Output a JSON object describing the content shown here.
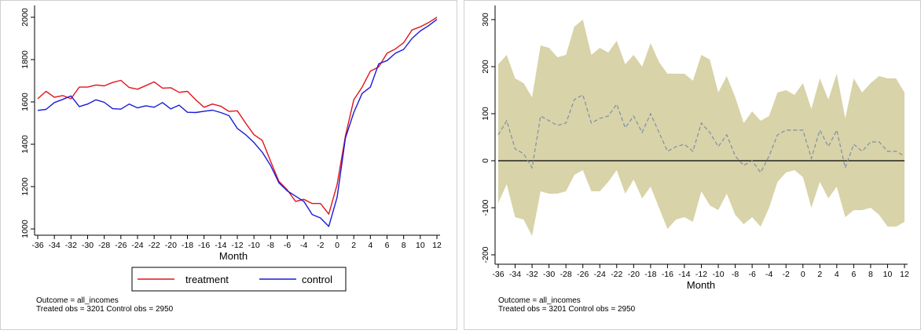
{
  "chart_data": [
    {
      "type": "line",
      "xlabel": "Month",
      "ylabel": "",
      "xlim": [
        -36,
        12
      ],
      "ylim": [
        1000,
        2000
      ],
      "x_ticks": [
        -36,
        -34,
        -32,
        -30,
        -28,
        -26,
        -24,
        -22,
        -20,
        -18,
        -16,
        -14,
        -12,
        -10,
        -8,
        -6,
        -4,
        -2,
        0,
        2,
        4,
        6,
        8,
        10,
        12
      ],
      "y_ticks": [
        1000,
        1200,
        1400,
        1600,
        1800,
        2000
      ],
      "grid": false,
      "legend_position": "bottom",
      "colors": {
        "treatment": "#e0141b",
        "control": "#1a1ad8"
      },
      "x": [
        -36,
        -35,
        -34,
        -33,
        -32,
        -31,
        -30,
        -29,
        -28,
        -27,
        -26,
        -25,
        -24,
        -23,
        -22,
        -21,
        -20,
        -19,
        -18,
        -17,
        -16,
        -15,
        -14,
        -13,
        -12,
        -11,
        -10,
        -9,
        -8,
        -7,
        -6,
        -5,
        -4,
        -3,
        -2,
        -1,
        0,
        1,
        2,
        3,
        4,
        5,
        6,
        7,
        8,
        9,
        10,
        11,
        12
      ],
      "series": [
        {
          "name": "treatment",
          "values": [
            1615,
            1650,
            1622,
            1630,
            1615,
            1670,
            1670,
            1680,
            1676,
            1692,
            1702,
            1668,
            1660,
            1677,
            1695,
            1665,
            1667,
            1645,
            1650,
            1610,
            1575,
            1590,
            1580,
            1555,
            1558,
            1500,
            1445,
            1418,
            1320,
            1225,
            1185,
            1130,
            1140,
            1120,
            1120,
            1070,
            1210,
            1440,
            1610,
            1670,
            1745,
            1765,
            1830,
            1850,
            1880,
            1940,
            1955,
            1975,
            2000
          ]
        },
        {
          "name": "control",
          "values": [
            1560,
            1565,
            1597,
            1612,
            1628,
            1578,
            1590,
            1610,
            1598,
            1568,
            1566,
            1590,
            1572,
            1582,
            1575,
            1597,
            1567,
            1585,
            1551,
            1550,
            1556,
            1561,
            1550,
            1535,
            1475,
            1445,
            1408,
            1362,
            1300,
            1218,
            1180,
            1155,
            1130,
            1068,
            1052,
            1012,
            1150,
            1430,
            1550,
            1640,
            1670,
            1780,
            1795,
            1830,
            1848,
            1900,
            1935,
            1960,
            1990
          ]
        }
      ],
      "annotations": [
        "Outcome = all_incomes",
        "Treated obs = 3201 Control obs = 2950"
      ]
    },
    {
      "type": "area",
      "xlabel": "Month",
      "ylabel": "",
      "xlim": [
        -36,
        12
      ],
      "ylim": [
        -200,
        300
      ],
      "x_ticks": [
        -36,
        -34,
        -32,
        -30,
        -28,
        -26,
        -24,
        -22,
        -20,
        -18,
        -16,
        -14,
        -12,
        -10,
        -8,
        -6,
        -4,
        -2,
        0,
        2,
        4,
        6,
        8,
        10,
        12
      ],
      "y_ticks": [
        -200,
        -100,
        0,
        100,
        200,
        300
      ],
      "grid": false,
      "colors": {
        "band": "#d8d3a8",
        "estimate": "#7f8fa8",
        "zero_line": "#000000"
      },
      "x": [
        -36,
        -35,
        -34,
        -33,
        -32,
        -31,
        -30,
        -29,
        -28,
        -27,
        -26,
        -25,
        -24,
        -23,
        -22,
        -21,
        -20,
        -19,
        -18,
        -17,
        -16,
        -15,
        -14,
        -13,
        -12,
        -11,
        -10,
        -9,
        -8,
        -7,
        -6,
        -5,
        -4,
        -3,
        -2,
        -1,
        0,
        1,
        2,
        3,
        4,
        5,
        6,
        7,
        8,
        9,
        10,
        11,
        12
      ],
      "series": [
        {
          "name": "",
          "role": "upper",
          "values": [
            205,
            225,
            175,
            165,
            135,
            245,
            240,
            220,
            225,
            285,
            300,
            225,
            240,
            230,
            255,
            205,
            225,
            200,
            250,
            210,
            185,
            185,
            185,
            170,
            225,
            215,
            145,
            180,
            135,
            80,
            105,
            85,
            95,
            145,
            150,
            140,
            165,
            110,
            175,
            130,
            185,
            90,
            175,
            145,
            165,
            180,
            175,
            175,
            145
          ]
        },
        {
          "name": "",
          "role": "estimate",
          "values": [
            55,
            85,
            25,
            15,
            -15,
            95,
            85,
            75,
            80,
            130,
            140,
            80,
            90,
            95,
            120,
            70,
            95,
            60,
            100,
            60,
            20,
            30,
            35,
            20,
            80,
            60,
            30,
            55,
            10,
            -10,
            0,
            -25,
            10,
            55,
            65,
            65,
            65,
            5,
            65,
            30,
            65,
            -15,
            35,
            20,
            40,
            40,
            20,
            20,
            10
          ]
        },
        {
          "name": "",
          "role": "lower",
          "values": [
            -90,
            -50,
            -120,
            -125,
            -160,
            -65,
            -70,
            -70,
            -65,
            -30,
            -20,
            -65,
            -65,
            -45,
            -20,
            -70,
            -40,
            -80,
            -55,
            -100,
            -145,
            -125,
            -120,
            -130,
            -65,
            -95,
            -105,
            -70,
            -115,
            -135,
            -120,
            -140,
            -100,
            -45,
            -25,
            -20,
            -35,
            -100,
            -45,
            -80,
            -55,
            -120,
            -105,
            -105,
            -100,
            -115,
            -140,
            -140,
            -130
          ]
        }
      ],
      "annotations": [
        "Outcome = all_incomes",
        "Treated obs = 3201 Control obs = 2950"
      ]
    }
  ]
}
